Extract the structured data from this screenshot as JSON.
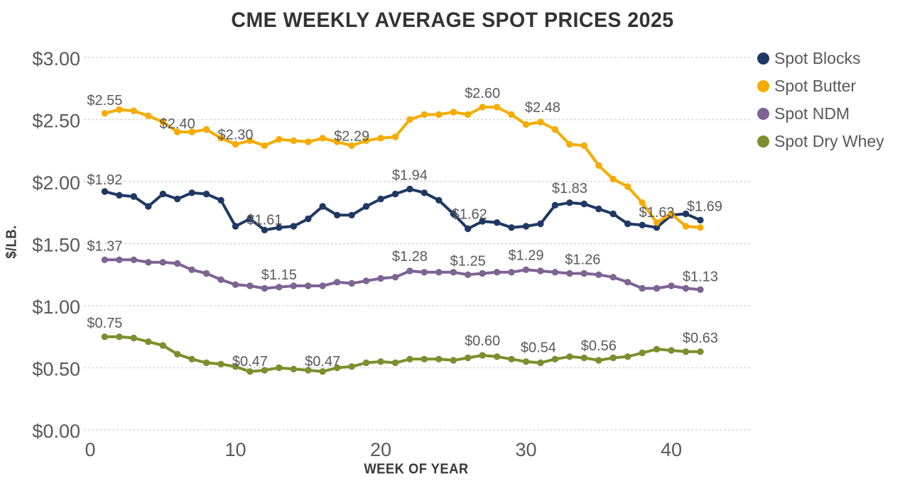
{
  "chart_data": {
    "type": "line",
    "title": "CME WEEKLY AVERAGE SPOT PRICES 2025",
    "xlabel": "WEEK OF YEAR",
    "ylabel": "$/LB.",
    "x_weeks": {
      "start": 1,
      "end": 42,
      "step": 1
    },
    "xlim": [
      0,
      45
    ],
    "ylim": [
      0,
      3
    ],
    "x_tick_values": [
      0,
      10,
      20,
      30,
      40
    ],
    "x_tick_labels": [
      "0",
      "10",
      "20",
      "30",
      "40"
    ],
    "y_tick_values": [
      0,
      0.5,
      1,
      1.5,
      2,
      2.5,
      3
    ],
    "y_tick_labels": [
      "$0.00",
      "$0.50",
      "$1.00",
      "$1.50",
      "$2.00",
      "$2.50",
      "$3.00"
    ],
    "grid": "horizontal-dotted",
    "grid_color": "#d2d2d2",
    "tick_color": "#595959",
    "data_label_color": "#595959",
    "legend_position": "right",
    "series": [
      {
        "name": "Spot Blocks",
        "color": "#1F3864",
        "values": [
          1.92,
          1.89,
          1.88,
          1.8,
          1.9,
          1.86,
          1.91,
          1.9,
          1.85,
          1.64,
          1.7,
          1.61,
          1.63,
          1.64,
          1.7,
          1.8,
          1.73,
          1.73,
          1.8,
          1.86,
          1.9,
          1.94,
          1.91,
          1.85,
          1.74,
          1.62,
          1.68,
          1.67,
          1.63,
          1.64,
          1.66,
          1.81,
          1.83,
          1.82,
          1.78,
          1.74,
          1.66,
          1.65,
          1.63,
          1.73,
          1.74,
          1.69
        ],
        "point_labels": [
          {
            "week": 1,
            "text": "$1.92",
            "dy": -10
          },
          {
            "week": 12,
            "text": "$1.61",
            "dy": -8
          },
          {
            "week": 22,
            "text": "$1.94",
            "dy": -13
          },
          {
            "week": 26,
            "text": "$1.62",
            "dy": -14,
            "dx": 2
          },
          {
            "week": 33,
            "text": "$1.83",
            "dy": -14
          },
          {
            "week": 39,
            "text": "$1.63",
            "dy": -15
          },
          {
            "week": 42,
            "text": "$1.69",
            "dy": -13,
            "dx": 6
          }
        ]
      },
      {
        "name": "Spot Butter",
        "color": "#F5AC00",
        "values": [
          2.55,
          2.58,
          2.57,
          2.53,
          2.48,
          2.4,
          2.4,
          2.42,
          2.35,
          2.3,
          2.33,
          2.29,
          2.34,
          2.33,
          2.32,
          2.35,
          2.32,
          2.29,
          2.33,
          2.35,
          2.36,
          2.5,
          2.54,
          2.54,
          2.56,
          2.54,
          2.6,
          2.6,
          2.54,
          2.46,
          2.48,
          2.42,
          2.3,
          2.29,
          2.13,
          2.02,
          1.96,
          1.83,
          1.67,
          1.74,
          1.64,
          1.63
        ],
        "point_labels": [
          {
            "week": 1,
            "text": "$2.55",
            "dy": -12
          },
          {
            "week": 6,
            "text": "$2.40",
            "dy": -5
          },
          {
            "week": 10,
            "text": "$2.30",
            "dy": -7
          },
          {
            "week": 18,
            "text": "$2.29",
            "dy": -7
          },
          {
            "week": 27,
            "text": "$2.60",
            "dy": -13
          },
          {
            "week": 31,
            "text": "$2.48",
            "dy": -14,
            "dx": 3
          }
        ]
      },
      {
        "name": "Spot NDM",
        "color": "#7D6493",
        "values": [
          1.37,
          1.37,
          1.37,
          1.35,
          1.35,
          1.34,
          1.29,
          1.26,
          1.21,
          1.17,
          1.16,
          1.14,
          1.15,
          1.16,
          1.16,
          1.16,
          1.19,
          1.18,
          1.2,
          1.22,
          1.23,
          1.28,
          1.27,
          1.27,
          1.27,
          1.25,
          1.26,
          1.27,
          1.27,
          1.29,
          1.28,
          1.27,
          1.26,
          1.26,
          1.25,
          1.23,
          1.19,
          1.14,
          1.14,
          1.16,
          1.14,
          1.13
        ],
        "point_labels": [
          {
            "week": 1,
            "text": "$1.37",
            "dy": -13
          },
          {
            "week": 13,
            "text": "$1.15",
            "dy": -11
          },
          {
            "week": 22,
            "text": "$1.28",
            "dy": -14
          },
          {
            "week": 26,
            "text": "$1.25",
            "dy": -13
          },
          {
            "week": 30,
            "text": "$1.29",
            "dy": -14
          },
          {
            "week": 34,
            "text": "$1.26",
            "dy": -13,
            "dx": -2
          },
          {
            "week": 42,
            "text": "$1.13",
            "dy": -12
          }
        ]
      },
      {
        "name": "Spot Dry Whey",
        "color": "#7B8F2E",
        "values": [
          0.75,
          0.75,
          0.74,
          0.71,
          0.68,
          0.61,
          0.57,
          0.54,
          0.53,
          0.51,
          0.47,
          0.48,
          0.5,
          0.49,
          0.48,
          0.47,
          0.5,
          0.51,
          0.54,
          0.55,
          0.54,
          0.57,
          0.57,
          0.57,
          0.56,
          0.58,
          0.6,
          0.59,
          0.57,
          0.55,
          0.54,
          0.57,
          0.59,
          0.58,
          0.56,
          0.58,
          0.59,
          0.62,
          0.65,
          0.64,
          0.63,
          0.63
        ],
        "point_labels": [
          {
            "week": 1,
            "text": "$0.75",
            "dy": -13
          },
          {
            "week": 11,
            "text": "$0.47",
            "dy": -8
          },
          {
            "week": 16,
            "text": "$0.47",
            "dy": -8
          },
          {
            "week": 27,
            "text": "$0.60",
            "dy": -14
          },
          {
            "week": 31,
            "text": "$0.54",
            "dy": -15,
            "dx": -3
          },
          {
            "week": 35,
            "text": "$0.56",
            "dy": -14
          },
          {
            "week": 42,
            "text": "$0.63",
            "dy": -13
          }
        ]
      }
    ]
  }
}
